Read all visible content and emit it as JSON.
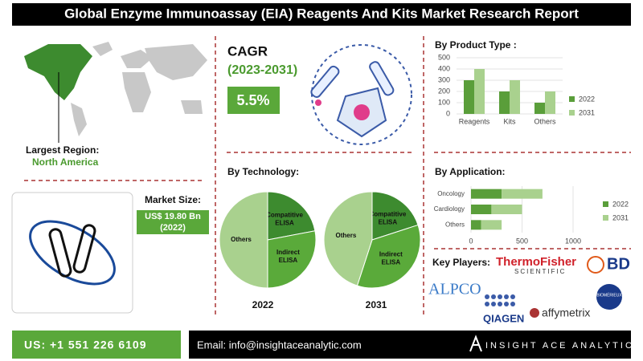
{
  "title": "Global Enzyme Immunoassay (EIA) Reagents And Kits Market Research Report",
  "region": {
    "label": "Largest Region:",
    "value": "North America"
  },
  "market_size": {
    "label": "Market Size:",
    "value": "US$ 19.80 Bn",
    "year": "(2022)"
  },
  "cagr": {
    "label": "CAGR",
    "period": "(2023-2031)",
    "value": "5.5%"
  },
  "key_players": {
    "heading": "Key Players:",
    "logos": [
      "ThermoFisher",
      "SCIENTIFIC",
      "BD",
      "ALPCO",
      "QIAGEN",
      "affymetrix",
      "BIOMÉRIEUX"
    ]
  },
  "footer": {
    "phone": "US: +1 551 226 6109",
    "email": "Email: info@insightaceanalytic.com",
    "brand": "INSIGHT ACE ANALYTIC"
  },
  "chart_data": [
    {
      "type": "bar",
      "title": "By Product Type :",
      "categories": [
        "Reagents",
        "Kits",
        "Others"
      ],
      "series": [
        {
          "name": "2022",
          "color": "#5a9e3a",
          "values": [
            300,
            200,
            100
          ]
        },
        {
          "name": "2031",
          "color": "#a9d18e",
          "values": [
            400,
            300,
            200
          ]
        }
      ],
      "ylim": [
        0,
        500
      ],
      "yticks": [
        0,
        100,
        200,
        300,
        400,
        500
      ],
      "legend": "right"
    },
    {
      "type": "pie",
      "title": "By Technology:",
      "caption": "2022",
      "categories": [
        "Compatitive ELISA",
        "Indirect ELISA",
        "Others"
      ],
      "values": [
        22,
        28,
        50
      ],
      "colors": [
        "#3d8b2f",
        "#5aaa3a",
        "#a9d18e"
      ]
    },
    {
      "type": "pie",
      "caption": "2031",
      "categories": [
        "Compatitive ELISA",
        "Indirect ELISA",
        "Others"
      ],
      "values": [
        20,
        35,
        45
      ],
      "colors": [
        "#3d8b2f",
        "#5aaa3a",
        "#a9d18e"
      ]
    },
    {
      "type": "hbar_stacked",
      "title": "By Application:",
      "categories": [
        "Oncology",
        "Cardiology",
        "Others"
      ],
      "series": [
        {
          "name": "2022",
          "color": "#5a9e3a",
          "values": [
            300,
            200,
            100
          ]
        },
        {
          "name": "2031",
          "color": "#a9d18e",
          "values": [
            400,
            300,
            200
          ]
        }
      ],
      "xlim": [
        0,
        1000
      ],
      "xticks": [
        0,
        500,
        1000
      ],
      "legend": "right"
    }
  ]
}
